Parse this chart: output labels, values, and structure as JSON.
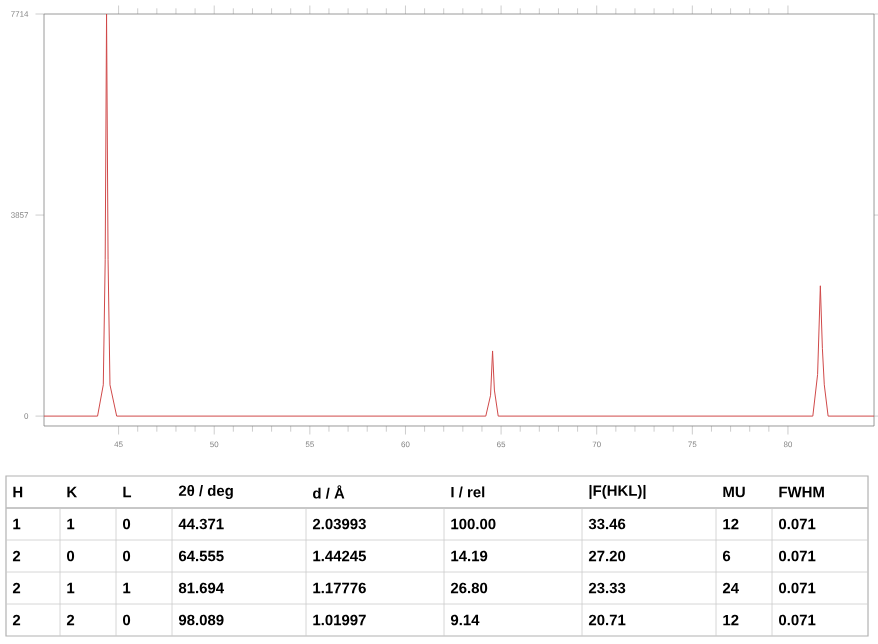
{
  "chart_data": {
    "type": "line",
    "series": [
      {
        "color": "#d04848",
        "x": [
          41.1,
          43.9,
          44.2,
          44.3,
          44.371,
          44.45,
          44.55,
          44.9,
          64.2,
          64.45,
          64.555,
          64.65,
          64.85,
          81.3,
          81.55,
          81.694,
          81.8,
          81.9,
          82.1,
          84.5
        ],
        "values": [
          0,
          0,
          600,
          3000,
          7714,
          3000,
          600,
          0,
          0,
          400,
          1250,
          500,
          0,
          0,
          800,
          2500,
          1300,
          600,
          0,
          0
        ]
      }
    ],
    "xlim": [
      41.1,
      84.5
    ],
    "xticks": [
      45,
      50,
      55,
      60,
      65,
      70,
      75,
      80
    ],
    "ylim": [
      -190,
      7714
    ],
    "yticks": [
      0,
      3857,
      7714
    ],
    "grid": false,
    "marker": "none",
    "line_style": "solid",
    "annotations": [
      "H",
      "K",
      "L",
      "2θ / deg",
      "d / Å",
      "I / rel",
      "|F(HKL)|",
      "MU",
      "FWHM",
      "1",
      "1",
      "0",
      "44.371",
      "2.03993",
      "100.00",
      "33.46",
      "12",
      "0.071",
      "2",
      "0",
      "0",
      "64.555",
      "1.44245",
      "14.19",
      "27.20",
      "6",
      "0.071",
      "2",
      "1",
      "1",
      "81.694",
      "1.17776",
      "26.80",
      "23.33",
      "24",
      "0.071",
      "2",
      "2",
      "0",
      "98.089",
      "1.01997",
      "9.14",
      "20.71",
      "12",
      "0.071"
    ]
  }
}
